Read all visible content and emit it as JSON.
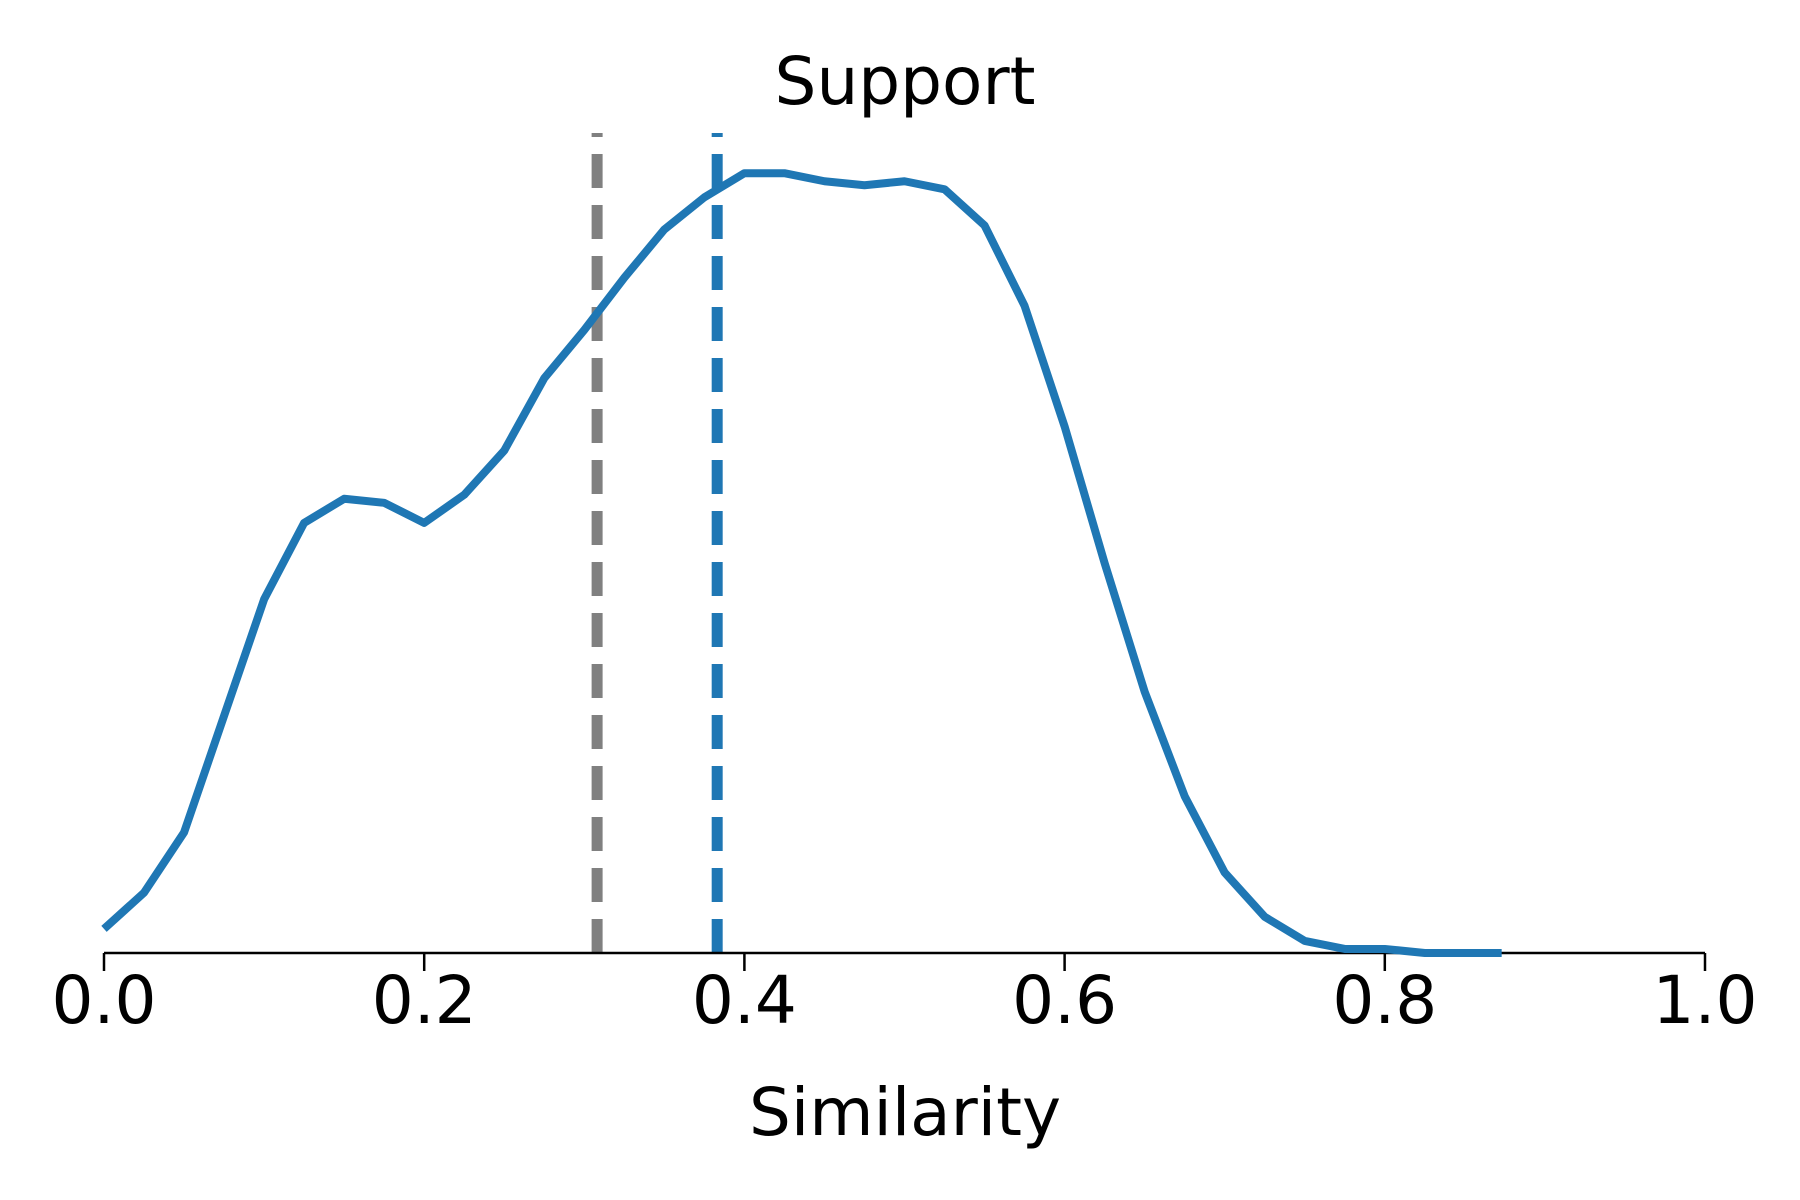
{
  "chart_data": {
    "type": "line",
    "title": "Support",
    "x_label": "Similarity",
    "x": [
      0,
      0.025,
      0.05,
      0.075,
      0.1,
      0.125,
      0.15,
      0.175,
      0.2,
      0.225,
      0.25,
      0.275,
      0.3,
      0.325,
      0.35,
      0.375,
      0.4,
      0.425,
      0.45,
      0.475,
      0.5,
      0.525,
      0.55,
      0.575,
      0.6,
      0.625,
      0.65,
      0.675,
      0.7,
      0.725,
      0.75,
      0.775,
      0.8,
      0.825,
      0.85,
      0.873
    ],
    "series": [
      {
        "color": "#1f77b4",
        "values": [
          0.06,
          0.15,
          0.3,
          0.59,
          0.88,
          1.07,
          1.13,
          1.12,
          1.07,
          1.14,
          1.25,
          1.43,
          1.55,
          1.68,
          1.8,
          1.88,
          1.94,
          1.94,
          1.92,
          1.91,
          1.92,
          1.9,
          1.81,
          1.61,
          1.31,
          0.97,
          0.65,
          0.39,
          0.2,
          0.09,
          0.03,
          0.01,
          0.01,
          0.0,
          0.0,
          0.0
        ]
      }
    ],
    "vlines": [
      {
        "x": 0.308,
        "color": "#808080"
      },
      {
        "x": 0.383,
        "color": "#1f77b4"
      }
    ],
    "xlim": [
      0,
      1
    ],
    "ylim": [
      0,
      2.04
    ],
    "xticks": [
      {
        "value": 0,
        "label": "0.0"
      },
      0.2,
      0.4,
      0.6,
      0.8,
      {
        "value": 1,
        "label": "1.0"
      }
    ]
  }
}
